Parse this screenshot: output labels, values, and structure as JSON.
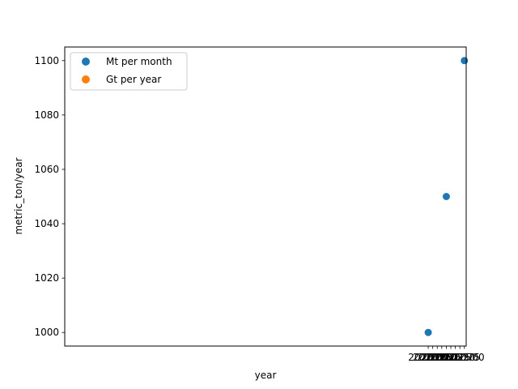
{
  "chart_data": {
    "type": "scatter",
    "xlabel": "year",
    "ylabel": "metric_ton/year",
    "xlim": [
      1999.9,
      2022.1
    ],
    "ylim": [
      995,
      1105
    ],
    "x_ticks": [
      2020.0,
      2020.25,
      2020.5,
      2020.75,
      2021.0,
      2021.25,
      2021.5,
      2021.75,
      2022.0
    ],
    "x_tick_labels": [
      "2020.00",
      "2020.25",
      "2020.50",
      "2020.75",
      "2021.00",
      "2021.25",
      "2021.50",
      "2021.75",
      "2022.00"
    ],
    "y_ticks": [
      1000,
      1020,
      1040,
      1060,
      1080,
      1100
    ],
    "y_tick_labels": [
      "1000",
      "1020",
      "1040",
      "1060",
      "1080",
      "1100"
    ],
    "grid": false,
    "legend_position": "top-left",
    "series": [
      {
        "name": "Mt per month",
        "color": "#1f77b4",
        "points": [
          {
            "x": 2020.0,
            "y": 1000
          },
          {
            "x": 2021.0,
            "y": 1050
          },
          {
            "x": 2022.0,
            "y": 1100
          }
        ]
      },
      {
        "name": "Gt per year",
        "color": "#ff7f0e",
        "points": []
      }
    ]
  }
}
